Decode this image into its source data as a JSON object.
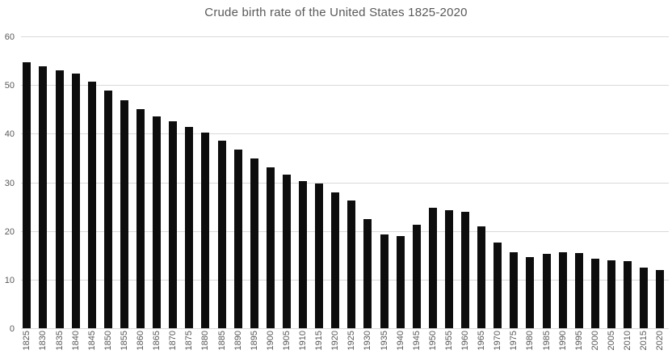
{
  "title": "Crude birth rate of the United States 1825-2020",
  "colors": {
    "bar": "#0d0d0d",
    "label": "#595959",
    "gridline": "#d9d9d9",
    "background": "#ffffff"
  },
  "chart_data": {
    "type": "bar",
    "title": "Crude birth rate of the United States 1825-2020",
    "xlabel": "",
    "ylabel": "",
    "ylim": [
      0,
      60
    ],
    "y_ticks": [
      0,
      10,
      20,
      30,
      40,
      50,
      60
    ],
    "grid": "horizontal",
    "legend": "none",
    "categories": [
      "1825",
      "1830",
      "1835",
      "1840",
      "1845",
      "1850",
      "1855",
      "1860",
      "1865",
      "1870",
      "1875",
      "1880",
      "1885",
      "1890",
      "1895",
      "1900",
      "1905",
      "1910",
      "1915",
      "1920",
      "1925",
      "1930",
      "1935",
      "1940",
      "1945",
      "1950",
      "1955",
      "1960",
      "1965",
      "1970",
      "1975",
      "1980",
      "1985",
      "1990",
      "1995",
      "2000",
      "2005",
      "2010",
      "2015",
      "2020"
    ],
    "values": [
      54.6,
      53.8,
      53.0,
      52.3,
      50.7,
      48.9,
      46.8,
      45.0,
      43.6,
      42.5,
      41.4,
      40.2,
      38.6,
      36.7,
      34.9,
      33.0,
      31.6,
      30.3,
      29.7,
      28.0,
      26.3,
      22.4,
      19.2,
      19.0,
      21.2,
      24.8,
      24.2,
      23.9,
      21.0,
      17.6,
      15.6,
      14.7,
      15.3,
      15.7,
      15.4,
      14.3,
      14.0,
      13.8,
      12.5,
      12.0
    ]
  }
}
